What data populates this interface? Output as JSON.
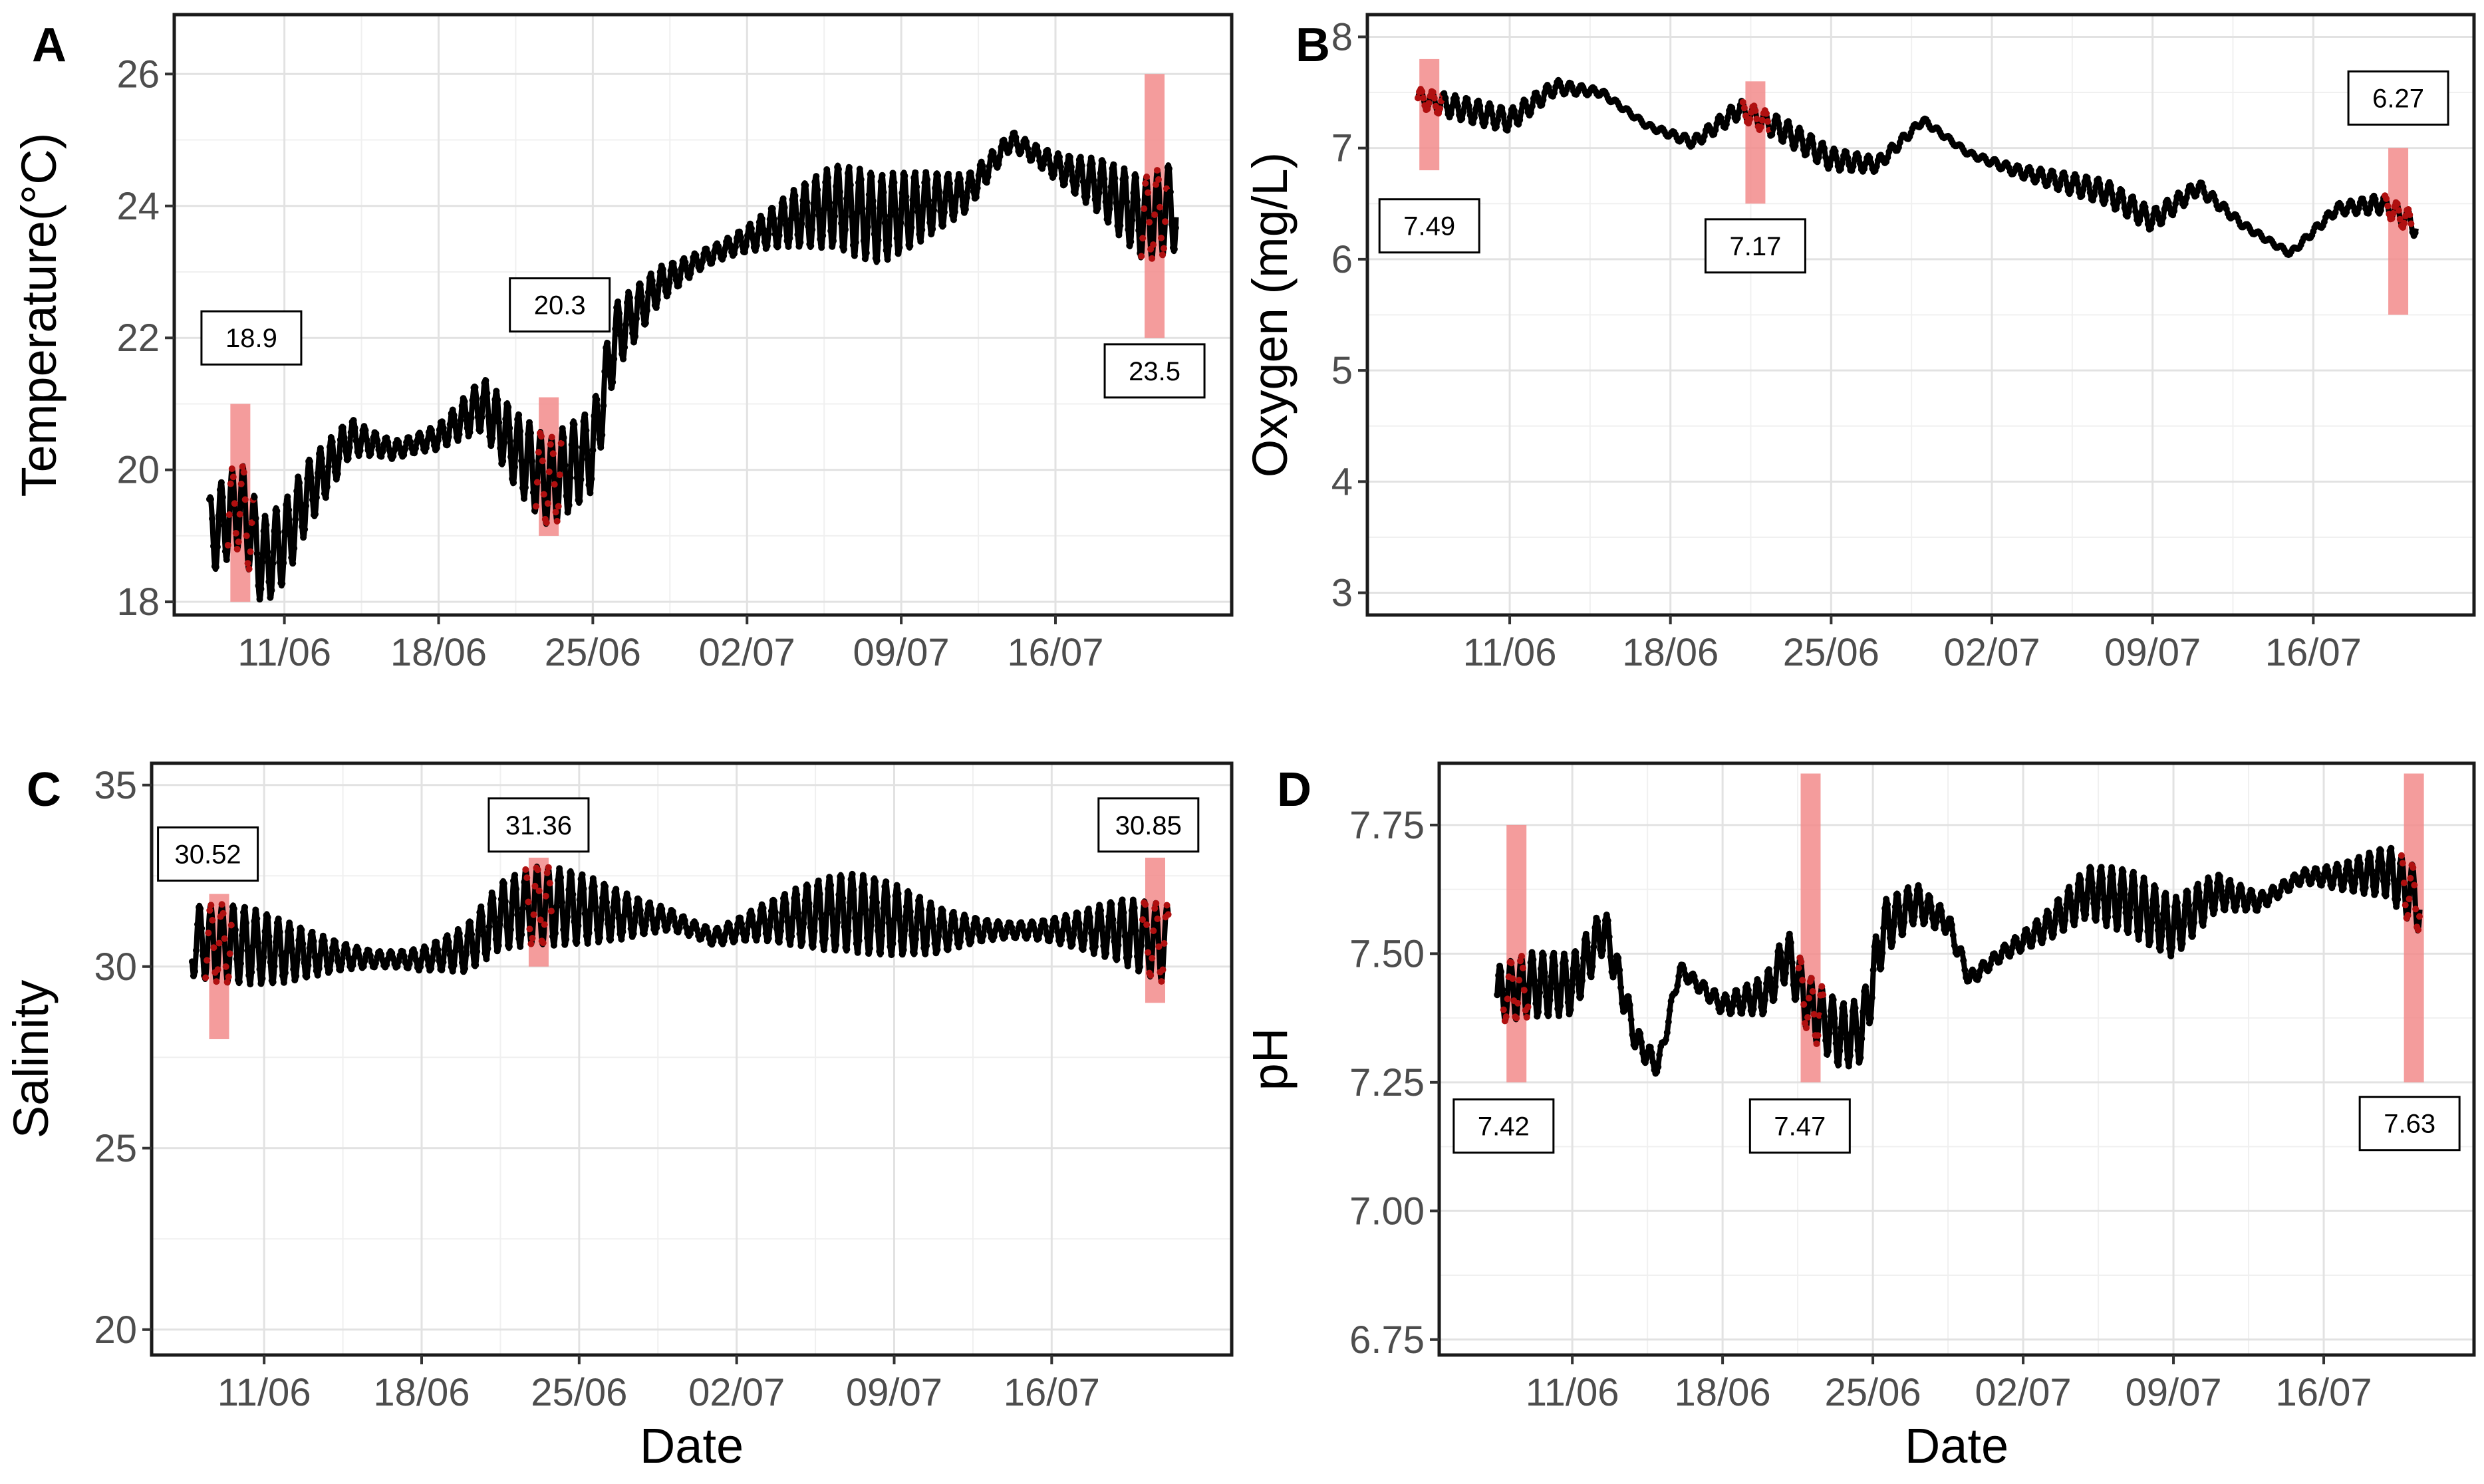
{
  "chart_data": [
    {
      "panel": "A",
      "type": "scatter",
      "ylabel": "Temperature(°C)",
      "xlabel": "",
      "ylim": [
        17.8,
        26.9
      ],
      "yticks": [
        18,
        20,
        22,
        24,
        26
      ],
      "x_range_days": [
        0,
        48
      ],
      "xticks": [
        {
          "day": 5,
          "label": "11/06"
        },
        {
          "day": 12,
          "label": "18/06"
        },
        {
          "day": 19,
          "label": "25/06"
        },
        {
          "day": 26,
          "label": "02/07"
        },
        {
          "day": 33,
          "label": "09/07"
        },
        {
          "day": 40,
          "label": "16/07"
        }
      ],
      "trend": [
        [
          1.6,
          19.0
        ],
        [
          3,
          19.5
        ],
        [
          4,
          18.6
        ],
        [
          5,
          18.9
        ],
        [
          6,
          19.6
        ],
        [
          8,
          20.5
        ],
        [
          10,
          20.3
        ],
        [
          12,
          20.5
        ],
        [
          14,
          21.0
        ],
        [
          15.5,
          20.3
        ],
        [
          17,
          19.8
        ],
        [
          19,
          20.3
        ],
        [
          20,
          22.0
        ],
        [
          22,
          22.8
        ],
        [
          24,
          23.2
        ],
        [
          26,
          23.5
        ],
        [
          28,
          23.8
        ],
        [
          30,
          24.0
        ],
        [
          32,
          23.8
        ],
        [
          34,
          24.0
        ],
        [
          36,
          24.2
        ],
        [
          38,
          25.0
        ],
        [
          40,
          24.6
        ],
        [
          42,
          24.3
        ],
        [
          44,
          23.8
        ],
        [
          45.5,
          24.0
        ]
      ],
      "amplitude": 0.75,
      "period_days": 0.5,
      "highlights": [
        {
          "day": 3,
          "y_low": 18.0,
          "y_high": 21.0
        },
        {
          "day": 17,
          "y_low": 19.0,
          "y_high": 21.1
        },
        {
          "day": 44.5,
          "y_low": 22.0,
          "y_high": 26.0
        }
      ],
      "annotations": [
        {
          "label": "18.9",
          "day": 3.5,
          "y": 22.0
        },
        {
          "label": "20.3",
          "day": 17.5,
          "y": 22.5
        },
        {
          "label": "23.5",
          "day": 44.5,
          "y": 21.5
        }
      ]
    },
    {
      "panel": "B",
      "type": "scatter",
      "ylabel": "Oxygen (mg/L)",
      "xlabel": "",
      "ylim": [
        2.8,
        8.2
      ],
      "yticks": [
        3,
        4,
        5,
        6,
        7,
        8
      ],
      "x_range_days": [
        -1.2,
        47
      ],
      "xticks": [
        {
          "day": 5,
          "label": "11/06"
        },
        {
          "day": 12,
          "label": "18/06"
        },
        {
          "day": 19,
          "label": "25/06"
        },
        {
          "day": 26,
          "label": "02/07"
        },
        {
          "day": 33,
          "label": "09/07"
        },
        {
          "day": 40,
          "label": "16/07"
        }
      ],
      "trend": [
        [
          1,
          7.45
        ],
        [
          3,
          7.35
        ],
        [
          5,
          7.25
        ],
        [
          7,
          7.55
        ],
        [
          9,
          7.5
        ],
        [
          11,
          7.2
        ],
        [
          13,
          7.05
        ],
        [
          15,
          7.35
        ],
        [
          17,
          7.15
        ],
        [
          19,
          6.9
        ],
        [
          21,
          6.85
        ],
        [
          23,
          7.25
        ],
        [
          25,
          6.95
        ],
        [
          27,
          6.8
        ],
        [
          29,
          6.7
        ],
        [
          31,
          6.6
        ],
        [
          33,
          6.35
        ],
        [
          35,
          6.65
        ],
        [
          37,
          6.3
        ],
        [
          39,
          6.05
        ],
        [
          41,
          6.45
        ],
        [
          43,
          6.5
        ],
        [
          44.5,
          6.3
        ]
      ],
      "amplitude": 0.12,
      "period_days": 0.5,
      "highlights": [
        {
          "day": 1.5,
          "y_low": 6.8,
          "y_high": 7.8
        },
        {
          "day": 15.7,
          "y_low": 6.5,
          "y_high": 7.6
        },
        {
          "day": 43.7,
          "y_low": 5.5,
          "y_high": 7.0
        }
      ],
      "annotations": [
        {
          "label": "7.49",
          "day": 1.5,
          "y": 6.3
        },
        {
          "label": "7.17",
          "day": 15.7,
          "y": 6.12
        },
        {
          "label": "6.27",
          "day": 43.7,
          "y": 7.45
        }
      ]
    },
    {
      "panel": "C",
      "type": "scatter",
      "ylabel": "Salinity",
      "xlabel": "Date",
      "ylim": [
        19.3,
        35.6
      ],
      "yticks": [
        20,
        25,
        30,
        35
      ],
      "x_range_days": [
        0,
        48
      ],
      "xticks": [
        {
          "day": 5,
          "label": "11/06"
        },
        {
          "day": 12,
          "label": "18/06"
        },
        {
          "day": 19,
          "label": "25/06"
        },
        {
          "day": 26,
          "label": "02/07"
        },
        {
          "day": 33,
          "label": "09/07"
        },
        {
          "day": 40,
          "label": "16/07"
        }
      ],
      "trend": [
        [
          1.8,
          30.7
        ],
        [
          4,
          30.6
        ],
        [
          6,
          30.4
        ],
        [
          8,
          30.3
        ],
        [
          10,
          30.2
        ],
        [
          12,
          30.2
        ],
        [
          14,
          30.5
        ],
        [
          15.5,
          31.4
        ],
        [
          17,
          31.7
        ],
        [
          19,
          31.6
        ],
        [
          21,
          31.4
        ],
        [
          23,
          31.3
        ],
        [
          25,
          30.8
        ],
        [
          27,
          31.2
        ],
        [
          29,
          31.4
        ],
        [
          31,
          31.5
        ],
        [
          33,
          31.3
        ],
        [
          35,
          31.0
        ],
        [
          37,
          31.0
        ],
        [
          39,
          31.0
        ],
        [
          41,
          31.0
        ],
        [
          43,
          31.0
        ],
        [
          45.2,
          30.6
        ]
      ],
      "amplitude": 1.2,
      "period_days": 0.5,
      "highlights": [
        {
          "day": 3,
          "y_low": 28.0,
          "y_high": 32.0
        },
        {
          "day": 17.2,
          "y_low": 30.0,
          "y_high": 33.0
        },
        {
          "day": 44.6,
          "y_low": 29.0,
          "y_high": 33.0
        }
      ],
      "annotations": [
        {
          "label": "30.52",
          "day": 2.5,
          "y": 33.1
        },
        {
          "label": "31.36",
          "day": 17.2,
          "y": 33.9
        },
        {
          "label": "30.85",
          "day": 44.3,
          "y": 33.9
        }
      ]
    },
    {
      "panel": "D",
      "type": "scatter",
      "ylabel": "pH",
      "xlabel": "Date",
      "ylim": [
        6.72,
        7.87
      ],
      "yticks": [
        6.75,
        7.0,
        7.25,
        7.5,
        7.75
      ],
      "ytick_labels": [
        "6.75",
        "7.00",
        "7.25",
        "7.50",
        "7.75"
      ],
      "x_range_days": [
        -1.2,
        47
      ],
      "xticks": [
        {
          "day": 5,
          "label": "11/06"
        },
        {
          "day": 12,
          "label": "18/06"
        },
        {
          "day": 19,
          "label": "25/06"
        },
        {
          "day": 26,
          "label": "02/07"
        },
        {
          "day": 33,
          "label": "09/07"
        },
        {
          "day": 40,
          "label": "16/07"
        }
      ],
      "trend": [
        [
          1.5,
          7.42
        ],
        [
          3,
          7.44
        ],
        [
          5,
          7.44
        ],
        [
          6.5,
          7.55
        ],
        [
          8,
          7.33
        ],
        [
          9,
          7.28
        ],
        [
          10,
          7.47
        ],
        [
          12,
          7.4
        ],
        [
          14,
          7.42
        ],
        [
          15,
          7.5
        ],
        [
          16,
          7.4
        ],
        [
          17.5,
          7.34
        ],
        [
          18.5,
          7.35
        ],
        [
          19.5,
          7.55
        ],
        [
          21,
          7.6
        ],
        [
          22.5,
          7.56
        ],
        [
          23.5,
          7.45
        ],
        [
          25,
          7.5
        ],
        [
          27,
          7.55
        ],
        [
          29,
          7.62
        ],
        [
          31,
          7.6
        ],
        [
          33,
          7.55
        ],
        [
          35,
          7.62
        ],
        [
          37,
          7.6
        ],
        [
          39,
          7.65
        ],
        [
          41,
          7.65
        ],
        [
          43,
          7.66
        ],
        [
          44.5,
          7.6
        ]
      ],
      "amplitude": 0.07,
      "period_days": 0.5,
      "highlights": [
        {
          "day": 2.4,
          "y_low": 7.25,
          "y_high": 7.75
        },
        {
          "day": 16.1,
          "y_low": 7.25,
          "y_high": 7.85
        },
        {
          "day": 44.2,
          "y_low": 7.25,
          "y_high": 7.85
        }
      ],
      "annotations": [
        {
          "label": "7.42",
          "day": 1.8,
          "y": 7.165
        },
        {
          "label": "7.47",
          "day": 15.6,
          "y": 7.165
        },
        {
          "label": "7.63",
          "day": 44.0,
          "y": 7.17
        }
      ]
    }
  ]
}
